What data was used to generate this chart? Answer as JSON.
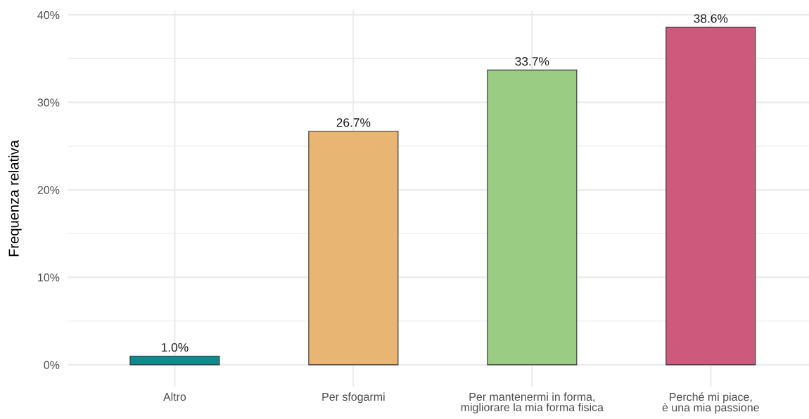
{
  "chart_data": {
    "type": "bar",
    "ylabel": "Frequenza relativa",
    "categories": [
      "Altro",
      "Per sfogarmi",
      "Per mantenermi in forma,\nmigliorare la mia forma fisica",
      "Perché mi piace,\nè una mia passione"
    ],
    "values": [
      1.0,
      26.7,
      33.7,
      38.6
    ],
    "colors": [
      "#0f8b8d",
      "#e8b572",
      "#9bcc84",
      "#cd5a7c"
    ],
    "value_labels": [
      "1.0%",
      "26.7%",
      "33.7%",
      "38.6%"
    ],
    "ylim": [
      -2.5,
      40.5
    ],
    "yticks": [
      {
        "value": 0,
        "label": "0%"
      },
      {
        "value": 5,
        "label": null
      },
      {
        "value": 10,
        "label": "10%"
      },
      {
        "value": 15,
        "label": null
      },
      {
        "value": 20,
        "label": "20%"
      },
      {
        "value": 25,
        "label": null
      },
      {
        "value": 30,
        "label": "30%"
      },
      {
        "value": 35,
        "label": null
      },
      {
        "value": 40,
        "label": "40%"
      }
    ],
    "grid": true
  }
}
